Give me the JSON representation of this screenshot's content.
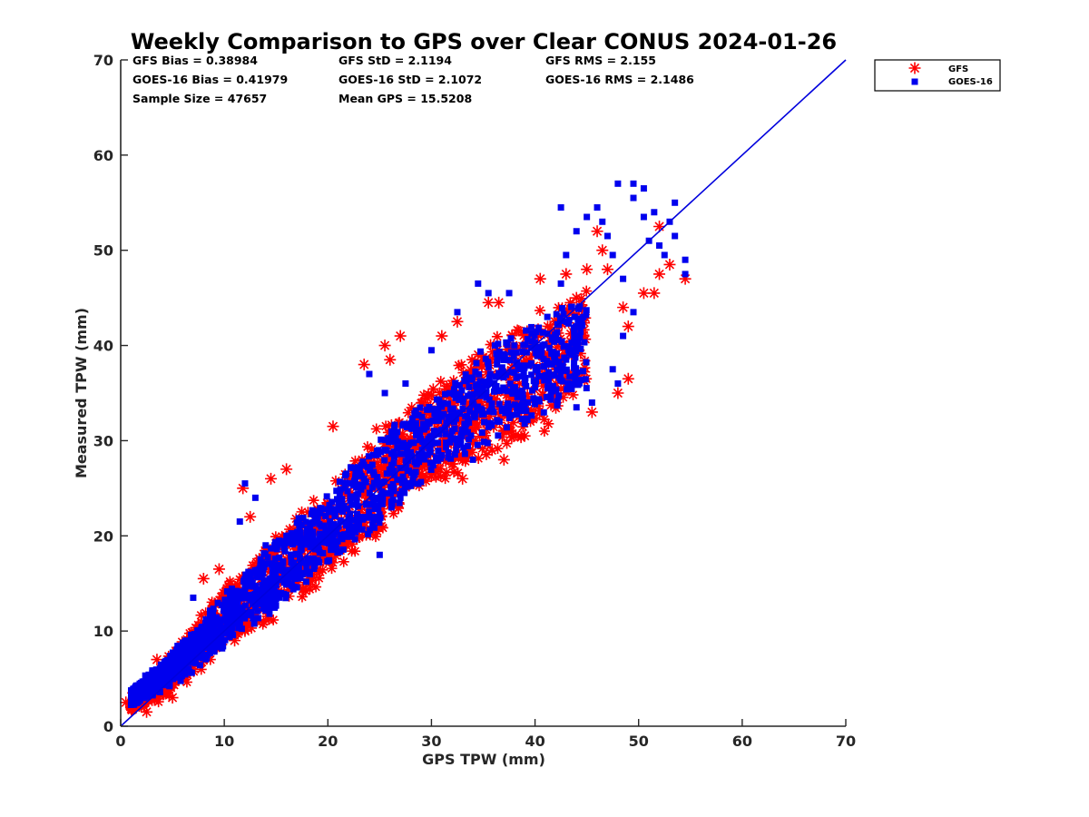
{
  "chart_data": {
    "type": "scatter",
    "title": "Weekly Comparison to GPS over Clear CONUS 2024-01-26",
    "xlabel": "GPS TPW (mm)",
    "ylabel": "Measured TPW (mm)",
    "xlim": [
      0,
      70
    ],
    "ylim": [
      0,
      70
    ],
    "xticks": [
      "0",
      "10",
      "20",
      "30",
      "40",
      "50",
      "60",
      "70"
    ],
    "yticks": [
      "0",
      "10",
      "20",
      "30",
      "40",
      "50",
      "60",
      "70"
    ],
    "legend_position": "outside top-right",
    "stats": {
      "gfs_bias": "GFS Bias = 0.38984",
      "goes_bias": "GOES-16 Bias = 0.41979",
      "sample_size": "Sample Size = 47657",
      "gfs_std": "GFS StD = 2.1194",
      "goes_std": "GOES-16 StD = 2.1072",
      "mean_gps": "Mean GPS = 15.5208",
      "gfs_rms": "GFS RMS = 2.155",
      "goes_rms": "GOES-16 RMS = 2.1486"
    },
    "reference_line": {
      "name": "1:1",
      "x": [
        0,
        70
      ],
      "y": [
        0,
        70
      ],
      "color": "#0000dd"
    },
    "series": [
      {
        "name": "GFS",
        "marker": "asterisk",
        "color": "#ff0000",
        "core_band": {
          "x": [
            [
              1,
              1.5,
              3
            ],
            [
              5,
              3,
              8
            ],
            [
              10,
              8,
              15
            ],
            [
              15,
              11,
              21
            ],
            [
              20,
              15,
              25
            ],
            [
              25,
              20,
              32
            ],
            [
              30,
              25,
              36
            ],
            [
              35,
              27,
              41
            ],
            [
              40,
              30,
              44
            ],
            [
              45,
              34,
              47
            ]
          ]
        },
        "outliers": [
          [
            0.5,
            2.5
          ],
          [
            1.2,
            3.5
          ],
          [
            2.5,
            1.5
          ],
          [
            3.5,
            7
          ],
          [
            8,
            15.5
          ],
          [
            9.5,
            16.5
          ],
          [
            11.8,
            25
          ],
          [
            12.5,
            22
          ],
          [
            14.5,
            26
          ],
          [
            16,
            27
          ],
          [
            20.5,
            31.5
          ],
          [
            23.5,
            38
          ],
          [
            25.5,
            40
          ],
          [
            26,
            38.5
          ],
          [
            27,
            41
          ],
          [
            31,
            41
          ],
          [
            32.5,
            42.5
          ],
          [
            35.5,
            44.5
          ],
          [
            36.5,
            44.5
          ],
          [
            38.5,
            36
          ],
          [
            39,
            30.5
          ],
          [
            40.5,
            47
          ],
          [
            43,
            47.5
          ],
          [
            44,
            45
          ],
          [
            45,
            48
          ],
          [
            46,
            52
          ],
          [
            46.5,
            50
          ],
          [
            47,
            48
          ],
          [
            48.5,
            44
          ],
          [
            49,
            42
          ],
          [
            49,
            36.5
          ],
          [
            50.5,
            45.5
          ],
          [
            51.5,
            45.5
          ],
          [
            52,
            47.5
          ],
          [
            53,
            48.5
          ],
          [
            54.5,
            47
          ],
          [
            52,
            52.5
          ],
          [
            12,
            10
          ],
          [
            17,
            17
          ],
          [
            19,
            19
          ],
          [
            24,
            22
          ],
          [
            28,
            25.5
          ],
          [
            33,
            26
          ],
          [
            37,
            28
          ],
          [
            37.5,
            31
          ],
          [
            44,
            37
          ],
          [
            45.5,
            33
          ],
          [
            42,
            36
          ],
          [
            11,
            9
          ],
          [
            5,
            3
          ],
          [
            22,
            20.5
          ],
          [
            48,
            35
          ],
          [
            30,
            27
          ],
          [
            34,
            30
          ]
        ]
      },
      {
        "name": "GOES-16",
        "marker": "square",
        "color": "#0000ee",
        "core_band": {
          "x": [
            [
              1,
              2,
              4
            ],
            [
              5,
              4,
              8
            ],
            [
              10,
              8,
              14
            ],
            [
              15,
              12,
              20
            ],
            [
              20,
              17,
              25
            ],
            [
              25,
              21,
              31
            ],
            [
              30,
              26,
              35
            ],
            [
              35,
              29,
              40
            ],
            [
              40,
              32,
              43
            ],
            [
              45,
              35,
              46
            ]
          ]
        },
        "outliers": [
          [
            12,
            25.5
          ],
          [
            11.5,
            21.5
          ],
          [
            13,
            24
          ],
          [
            14,
            19
          ],
          [
            24,
            37
          ],
          [
            25.5,
            35
          ],
          [
            27.5,
            36
          ],
          [
            30,
            39.5
          ],
          [
            32.5,
            43.5
          ],
          [
            34.5,
            46.5
          ],
          [
            35.5,
            45.5
          ],
          [
            37.5,
            45.5
          ],
          [
            42.5,
            54.5
          ],
          [
            43,
            49.5
          ],
          [
            44,
            52
          ],
          [
            45,
            53.5
          ],
          [
            46,
            54.5
          ],
          [
            46.5,
            53
          ],
          [
            47,
            51.5
          ],
          [
            47.5,
            49.5
          ],
          [
            48,
            57
          ],
          [
            49.5,
            55.5
          ],
          [
            49.5,
            57
          ],
          [
            50.5,
            56.5
          ],
          [
            50.5,
            53.5
          ],
          [
            51,
            51
          ],
          [
            51.5,
            54
          ],
          [
            52,
            50.5
          ],
          [
            52.5,
            49.5
          ],
          [
            53,
            53
          ],
          [
            53.5,
            51.5
          ],
          [
            53.5,
            55
          ],
          [
            48.5,
            47
          ],
          [
            49.5,
            43.5
          ],
          [
            48.5,
            41
          ],
          [
            42.5,
            46.5
          ],
          [
            38,
            40
          ],
          [
            36,
            33
          ],
          [
            34,
            28
          ],
          [
            38,
            35
          ],
          [
            25,
            18
          ],
          [
            22,
            22
          ],
          [
            27,
            24
          ],
          [
            30.5,
            28
          ],
          [
            44,
            33.5
          ],
          [
            45.5,
            34
          ],
          [
            47.5,
            37.5
          ],
          [
            48,
            36
          ],
          [
            54.5,
            49
          ],
          [
            54.5,
            47.5
          ],
          [
            16,
            20
          ],
          [
            19,
            22
          ],
          [
            9,
            11
          ],
          [
            7,
            13.5
          ]
        ]
      }
    ]
  }
}
